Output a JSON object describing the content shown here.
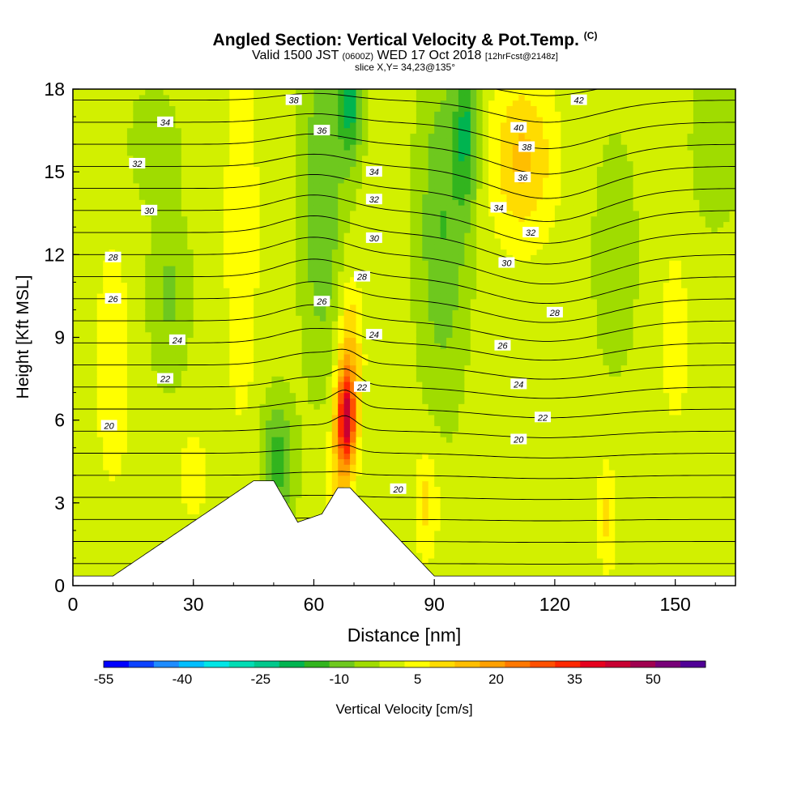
{
  "header": {
    "title": "Angled Section: Vertical Velocity & Pot.Temp.",
    "title_unit": "(C)",
    "valid_main": "Valid 1500 JST",
    "valid_zone": "(0600Z)",
    "valid_date": "WED 17 Oct 2018",
    "valid_fcst": "[12hrFcst@2148z]",
    "slice": "slice X,Y= 34,23@135°"
  },
  "chart_data": {
    "type": "heatmap",
    "xlabel": "Distance [nm]",
    "ylabel": "Height [Kft MSL]",
    "xlim": [
      0,
      165
    ],
    "ylim": [
      0,
      18
    ],
    "x_ticks": [
      0,
      30,
      60,
      90,
      120,
      150
    ],
    "y_ticks": [
      0,
      3,
      6,
      9,
      12,
      15,
      18
    ],
    "colorbar": {
      "label": "Vertical Velocity [cm/s]",
      "tick_labels": [
        -55,
        -40,
        -25,
        -10,
        5,
        20,
        35,
        50
      ],
      "range": [
        -55,
        60
      ],
      "step": 5,
      "colors": [
        "#0000ff",
        "#0d43ff",
        "#1f8cff",
        "#00beff",
        "#00e6e6",
        "#00dcb4",
        "#00c88c",
        "#00b450",
        "#32b41e",
        "#6ec81e",
        "#a0dc00",
        "#d2f000",
        "#ffff00",
        "#ffdc00",
        "#ffbe00",
        "#ffa000",
        "#ff7800",
        "#ff5000",
        "#ff2800",
        "#e6001e",
        "#c80032",
        "#a00050",
        "#780078",
        "#500096"
      ]
    },
    "field_max": {
      "x": 68,
      "y": 6.0,
      "value": 40
    },
    "isentrope_labels": [
      {
        "text": "20",
        "x": 9,
        "y": 5.8
      },
      {
        "text": "22",
        "x": 23,
        "y": 7.5
      },
      {
        "text": "24",
        "x": 26,
        "y": 8.9
      },
      {
        "text": "26",
        "x": 10,
        "y": 10.4
      },
      {
        "text": "28",
        "x": 10,
        "y": 11.9
      },
      {
        "text": "30",
        "x": 19,
        "y": 13.6
      },
      {
        "text": "32",
        "x": 16,
        "y": 15.3
      },
      {
        "text": "34",
        "x": 23,
        "y": 16.8
      },
      {
        "text": "38",
        "x": 55,
        "y": 17.6
      },
      {
        "text": "36",
        "x": 62,
        "y": 16.5
      },
      {
        "text": "34",
        "x": 75,
        "y": 15.0
      },
      {
        "text": "32",
        "x": 75,
        "y": 14.0
      },
      {
        "text": "30",
        "x": 75,
        "y": 12.6
      },
      {
        "text": "28",
        "x": 72,
        "y": 11.2
      },
      {
        "text": "26",
        "x": 62,
        "y": 10.3
      },
      {
        "text": "24",
        "x": 75,
        "y": 9.1
      },
      {
        "text": "22",
        "x": 72,
        "y": 7.2
      },
      {
        "text": "20",
        "x": 81,
        "y": 3.5
      },
      {
        "text": "42",
        "x": 126,
        "y": 17.6
      },
      {
        "text": "40",
        "x": 111,
        "y": 16.6
      },
      {
        "text": "38",
        "x": 113,
        "y": 15.9
      },
      {
        "text": "36",
        "x": 112,
        "y": 14.8
      },
      {
        "text": "34",
        "x": 106,
        "y": 13.7
      },
      {
        "text": "32",
        "x": 114,
        "y": 12.8
      },
      {
        "text": "30",
        "x": 108,
        "y": 11.7
      },
      {
        "text": "28",
        "x": 120,
        "y": 9.9
      },
      {
        "text": "26",
        "x": 107,
        "y": 8.7
      },
      {
        "text": "24",
        "x": 111,
        "y": 7.3
      },
      {
        "text": "22",
        "x": 117,
        "y": 6.1
      },
      {
        "text": "20",
        "x": 111,
        "y": 5.3
      }
    ]
  }
}
